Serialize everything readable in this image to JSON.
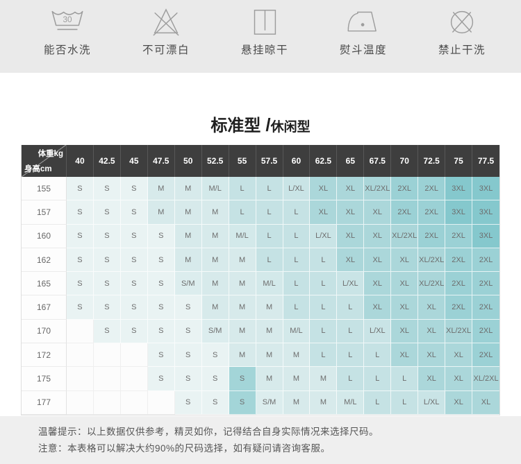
{
  "care_icons": {
    "bg": "#eaeaea",
    "items": [
      {
        "id": "washable",
        "icon": "wash-30-icon",
        "badge": "30",
        "label": "能否水洗"
      },
      {
        "id": "no-bleach",
        "icon": "no-bleach-icon",
        "badge": "",
        "label": "不可漂白"
      },
      {
        "id": "hang-dry",
        "icon": "hang-dry-icon",
        "badge": "",
        "label": "悬挂晾干"
      },
      {
        "id": "iron-temp",
        "icon": "iron-icon",
        "badge": "",
        "label": "熨斗温度"
      },
      {
        "id": "no-dry-clean",
        "icon": "no-dry-clean-icon",
        "badge": "",
        "label": "禁止干洗"
      }
    ]
  },
  "title": {
    "main": "标准型",
    "separator": "/",
    "secondary": "休闲型"
  },
  "size_table": {
    "corner_top_right": "体重kg",
    "corner_bottom_left": "身高cm",
    "weight_columns": [
      "40",
      "42.5",
      "45",
      "47.5",
      "50",
      "52.5",
      "55",
      "57.5",
      "60",
      "62.5",
      "65",
      "67.5",
      "70",
      "72.5",
      "75",
      "77.5"
    ],
    "rows": [
      {
        "height": "155",
        "cells": [
          "S",
          "S",
          "S",
          "M",
          "M",
          "M/L",
          "L",
          "L",
          "L/XL",
          "XL",
          "XL",
          "XL/2XL",
          "2XL",
          "2XL",
          "3XL",
          "3XL"
        ]
      },
      {
        "height": "157",
        "cells": [
          "S",
          "S",
          "S",
          "M",
          "M",
          "M",
          "L",
          "L",
          "L",
          "XL",
          "XL",
          "XL",
          "2XL",
          "2XL",
          "3XL",
          "3XL"
        ]
      },
      {
        "height": "160",
        "cells": [
          "S",
          "S",
          "S",
          "S",
          "M",
          "M",
          "M/L",
          "L",
          "L",
          "L/XL",
          "XL",
          "XL",
          "XL/2XL",
          "2XL",
          "2XL",
          "3XL"
        ]
      },
      {
        "height": "162",
        "cells": [
          "S",
          "S",
          "S",
          "S",
          "M",
          "M",
          "M",
          "L",
          "L",
          "L",
          "XL",
          "XL",
          "XL",
          "XL/2XL",
          "2XL",
          "2XL"
        ]
      },
      {
        "height": "165",
        "cells": [
          "S",
          "S",
          "S",
          "S",
          "S/M",
          "M",
          "M",
          "M/L",
          "L",
          "L",
          "L/XL",
          "XL",
          "XL",
          "XL/2XL",
          "2XL",
          "2XL"
        ]
      },
      {
        "height": "167",
        "cells": [
          "S",
          "S",
          "S",
          "S",
          "S",
          "M",
          "M",
          "M",
          "L",
          "L",
          "L",
          "XL",
          "XL",
          "XL",
          "2XL",
          "2XL"
        ]
      },
      {
        "height": "170",
        "cells": [
          "",
          "S",
          "S",
          "S",
          "S",
          "S/M",
          "M",
          "M",
          "M/L",
          "L",
          "L",
          "L/XL",
          "XL",
          "XL",
          "XL/2XL",
          "2XL"
        ]
      },
      {
        "height": "172",
        "cells": [
          "",
          "",
          "",
          "S",
          "S",
          "S",
          "M",
          "M",
          "M",
          "L",
          "L",
          "L",
          "XL",
          "XL",
          "XL",
          "2XL"
        ]
      },
      {
        "height": "175",
        "cells": [
          "",
          "",
          "",
          "S",
          "S",
          "S",
          "S",
          "M",
          "M",
          "M",
          "L",
          "L",
          "L",
          "XL",
          "XL",
          "XL/2XL"
        ]
      },
      {
        "height": "177",
        "cells": [
          "",
          "",
          "",
          "",
          "S",
          "S",
          "S",
          "S/M",
          "M",
          "M",
          "M/L",
          "L",
          "L",
          "L/XL",
          "XL",
          "XL"
        ]
      }
    ],
    "highlight_cells": [
      {
        "row": 8,
        "col": 6
      },
      {
        "row": 9,
        "col": 6
      }
    ],
    "colors": {
      "header_bg": "#3e3e3e",
      "header_text": "#ffffff",
      "cell_text": "#6d6d6d",
      "row_label_bg": "#fdfdfd",
      "row_label_text": "#666666",
      "empty": "#fcfcfc",
      "highlight": "#a3d5d8",
      "sizes": {
        "S": "#e9f3f3",
        "S/M": "#dcedee",
        "M": "#d7eaeb",
        "M/L": "#d3e9ea",
        "L": "#c5e2e4",
        "L/XL": "#c9e4e6",
        "XL": "#abd7da",
        "XL/2XL": "#aad6d9",
        "2XL": "#9bd1d5",
        "3XL": "#85c8cd"
      }
    }
  },
  "notes": {
    "bg": "#efefef",
    "tip": "温馨提示：以上数据仅供参考，精灵如你，记得结合自身实际情况来选择尺码。",
    "caution": "注意：本表格可以解决大约90%的尺码选择，如有疑问请咨询客服。"
  }
}
